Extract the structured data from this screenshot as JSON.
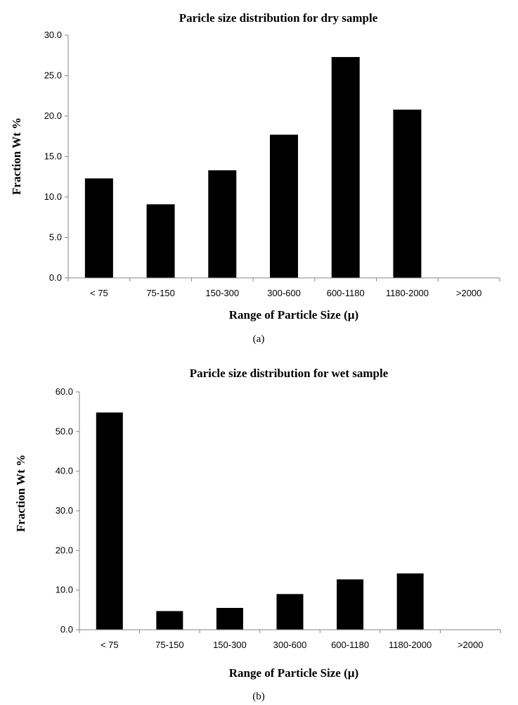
{
  "chart_data": [
    {
      "type": "bar",
      "title": "Paricle size distribution  for dry sample",
      "xlabel": "Range of Particle Size (µ)",
      "ylabel": "Fraction Wt  %",
      "panel_label": "(a)",
      "categories": [
        "< 75",
        "75-150",
        "150-300",
        "300-600",
        "600-1180",
        "1180-2000",
        ">2000"
      ],
      "values": [
        12.3,
        9.1,
        13.3,
        17.7,
        27.3,
        20.8,
        0
      ],
      "ylim": [
        0,
        30
      ],
      "yticks": [
        "0.0",
        "5.0",
        "10.0",
        "15.0",
        "20.0",
        "25.0",
        "30.0"
      ],
      "bar_color": "#000000",
      "grid": false
    },
    {
      "type": "bar",
      "title": "Paricle size distribution  for wet sample",
      "xlabel": "Range of Particle Size (µ)",
      "ylabel": "Fraction Wt  %",
      "panel_label": "(b)",
      "categories": [
        "< 75",
        "75-150",
        "150-300",
        "300-600",
        "600-1180",
        "1180-2000",
        ">2000"
      ],
      "values": [
        54.8,
        4.7,
        5.5,
        9.0,
        12.7,
        14.2,
        0
      ],
      "ylim": [
        0,
        60
      ],
      "yticks": [
        "0.0",
        "10.0",
        "20.0",
        "30.0",
        "40.0",
        "50.0",
        "60.0"
      ],
      "bar_color": "#000000",
      "grid": false
    }
  ]
}
